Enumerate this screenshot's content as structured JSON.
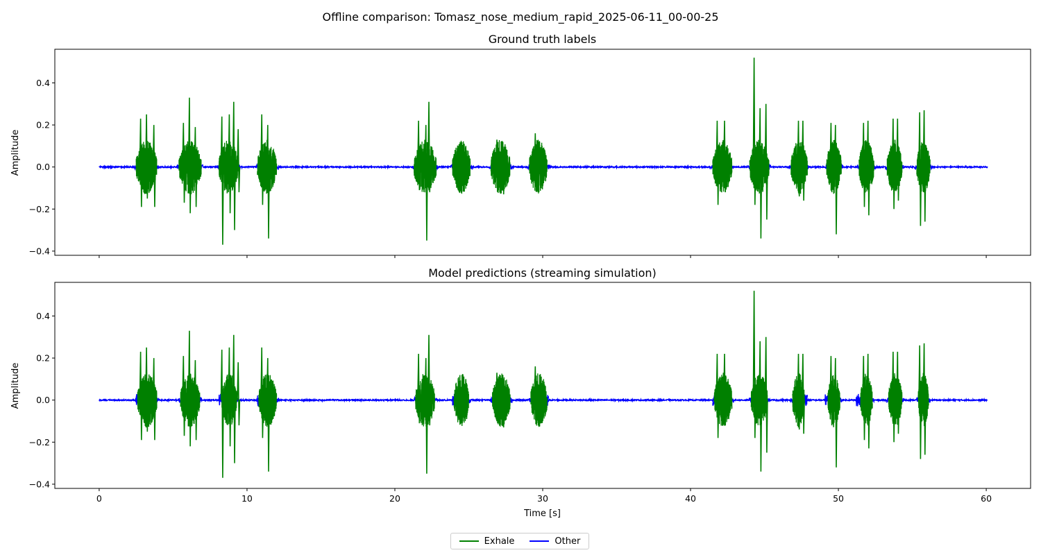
{
  "suptitle": "Offline comparison: Tomasz_nose_medium_rapid_2025-06-11_00-00-25",
  "colors": {
    "exhale": "#008000",
    "other": "#0000ff"
  },
  "legend": {
    "exhale_label": "Exhale",
    "other_label": "Other",
    "position": "bottom-center"
  },
  "chart_data": [
    {
      "type": "line",
      "title": "Ground truth labels",
      "xlabel": "",
      "ylabel": "Amplitude",
      "xlim": [
        -3,
        63
      ],
      "ylim": [
        -0.42,
        0.56
      ],
      "x_ticks": [
        0,
        10,
        20,
        30,
        40,
        50,
        60
      ],
      "y_ticks": [
        -0.4,
        -0.2,
        0.0,
        0.2,
        0.4
      ],
      "y_tick_labels": [
        "−0.4",
        "−0.2",
        "0.0",
        "0.2",
        "0.4"
      ],
      "x_tick_labels_visible": false,
      "grid": false,
      "series": [
        {
          "name": "Exhale",
          "color": "#008000",
          "segments": [
            [
              2.5,
              3.9
            ],
            [
              5.4,
              6.9
            ],
            [
              8.1,
              9.4
            ],
            [
              10.7,
              12.0
            ],
            [
              21.3,
              22.8
            ],
            [
              23.9,
              25.1
            ],
            [
              26.5,
              27.8
            ],
            [
              29.1,
              30.3
            ],
            [
              41.5,
              42.8
            ],
            [
              44.0,
              45.3
            ],
            [
              46.8,
              47.9
            ],
            [
              49.2,
              50.2
            ],
            [
              51.4,
              52.4
            ],
            [
              53.3,
              54.3
            ],
            [
              55.3,
              56.2
            ]
          ],
          "peaks": [
            [
              2.8,
              0.23,
              -0.19
            ],
            [
              3.2,
              0.25,
              -0.15
            ],
            [
              3.7,
              0.2,
              -0.19
            ],
            [
              5.7,
              0.21,
              -0.17
            ],
            [
              6.1,
              0.33,
              -0.22
            ],
            [
              6.5,
              0.19,
              -0.19
            ],
            [
              8.3,
              0.24,
              -0.37
            ],
            [
              8.8,
              0.25,
              -0.22
            ],
            [
              9.1,
              0.31,
              -0.3
            ],
            [
              9.4,
              0.18,
              -0.12
            ],
            [
              11.0,
              0.25,
              -0.18
            ],
            [
              11.4,
              0.2,
              -0.34
            ],
            [
              21.6,
              0.22,
              -0.11
            ],
            [
              22.1,
              0.2,
              -0.35
            ],
            [
              22.3,
              0.31,
              -0.12
            ],
            [
              24.3,
              0.1,
              -0.08
            ],
            [
              24.8,
              0.1,
              -0.09
            ],
            [
              26.9,
              0.13,
              -0.08
            ],
            [
              27.3,
              0.12,
              -0.13
            ],
            [
              29.5,
              0.16,
              -0.09
            ],
            [
              29.8,
              0.09,
              -0.07
            ],
            [
              41.8,
              0.22,
              -0.18
            ],
            [
              42.3,
              0.22,
              -0.12
            ],
            [
              44.3,
              0.52,
              -0.18
            ],
            [
              44.7,
              0.28,
              -0.34
            ],
            [
              45.1,
              0.3,
              -0.25
            ],
            [
              47.3,
              0.22,
              -0.14
            ],
            [
              47.6,
              0.22,
              -0.16
            ],
            [
              49.5,
              0.21,
              -0.12
            ],
            [
              49.8,
              0.2,
              -0.32
            ],
            [
              51.7,
              0.21,
              -0.19
            ],
            [
              52.0,
              0.22,
              -0.23
            ],
            [
              53.7,
              0.23,
              -0.2
            ],
            [
              54.0,
              0.23,
              -0.16
            ],
            [
              55.5,
              0.26,
              -0.28
            ],
            [
              55.8,
              0.27,
              -0.26
            ]
          ]
        },
        {
          "name": "Other",
          "color": "#0000ff",
          "baseline": 0.0,
          "noise": 0.003
        }
      ]
    },
    {
      "type": "line",
      "title": "Model predictions (streaming simulation)",
      "xlabel": "Time [s]",
      "ylabel": "Amplitude",
      "xlim": [
        -3,
        63
      ],
      "ylim": [
        -0.42,
        0.56
      ],
      "x_ticks": [
        0,
        10,
        20,
        30,
        40,
        50,
        60
      ],
      "x_tick_labels": [
        "0",
        "10",
        "20",
        "30",
        "40",
        "50",
        "60"
      ],
      "y_ticks": [
        -0.4,
        -0.2,
        0.0,
        0.2,
        0.4
      ],
      "y_tick_labels": [
        "−0.4",
        "−0.2",
        "0.0",
        "0.2",
        "0.4"
      ],
      "x_tick_labels_visible": true,
      "grid": false,
      "series": [
        {
          "name": "Exhale",
          "color": "#008000",
          "segments": [
            [
              2.6,
              3.9
            ],
            [
              5.5,
              6.8
            ],
            [
              8.3,
              9.3
            ],
            [
              10.8,
              12.0
            ],
            [
              21.4,
              22.7
            ],
            [
              24.0,
              25.0
            ],
            [
              26.6,
              27.8
            ],
            [
              29.2,
              30.3
            ],
            [
              41.6,
              42.8
            ],
            [
              44.1,
              45.2
            ],
            [
              46.9,
              47.7
            ],
            [
              49.3,
              50.1
            ],
            [
              51.5,
              52.3
            ],
            [
              53.4,
              54.3
            ],
            [
              55.4,
              56.1
            ]
          ],
          "peaks": "same as panel 1"
        },
        {
          "name": "Other",
          "color": "#0000ff",
          "baseline": 0.0,
          "noise": 0.003
        }
      ]
    }
  ]
}
